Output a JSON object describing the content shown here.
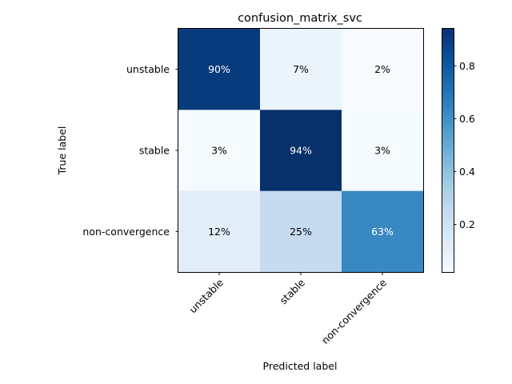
{
  "chart_data": {
    "type": "heatmap",
    "title": "confusion_matrix_svc",
    "xlabel": "Predicted label",
    "ylabel": "True label",
    "x_categories": [
      "unstable",
      "stable",
      "non-convergence"
    ],
    "y_categories": [
      "unstable",
      "stable",
      "non-convergence"
    ],
    "values": [
      [
        0.9,
        0.07,
        0.02
      ],
      [
        0.03,
        0.94,
        0.03
      ],
      [
        0.12,
        0.25,
        0.63
      ]
    ],
    "cell_labels": [
      [
        "90%",
        "7%",
        "2%"
      ],
      [
        "3%",
        "94%",
        "3%"
      ],
      [
        "12%",
        "25%",
        "63%"
      ]
    ],
    "colormap": "Blues",
    "colorbar": {
      "range": [
        0.02,
        0.94
      ],
      "ticks": [
        0.2,
        0.4,
        0.6,
        0.8
      ],
      "tick_labels": [
        "0.2",
        "0.4",
        "0.6",
        "0.8"
      ]
    },
    "grid": false
  }
}
